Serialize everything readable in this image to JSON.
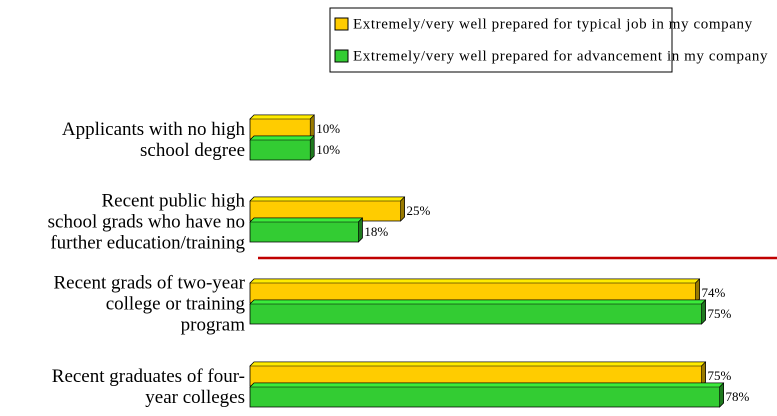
{
  "chart_data": {
    "type": "bar",
    "orientation": "horizontal",
    "categories": [
      "Applicants with no high\nschool degree",
      "Recent public high\nschool grads who have no\nfurther education/training",
      "Recent grads of two-year\ncollege or training\nprogram",
      "Recent graduates of four-\nyear colleges"
    ],
    "series": [
      {
        "name": "Extremely/very well prepared for typical job in my company",
        "color": "#ffcc00",
        "values": [
          10,
          25,
          74,
          75
        ],
        "value_labels": [
          "10%",
          "25%",
          "74%",
          "75%"
        ]
      },
      {
        "name": "Extremely/very well prepared for advancement in my company",
        "color": "#33cc33",
        "values": [
          10,
          18,
          75,
          78
        ],
        "value_labels": [
          "10%",
          "18%",
          "75%",
          "78%"
        ]
      }
    ],
    "xlim": [
      0,
      100
    ],
    "legend": "top"
  }
}
